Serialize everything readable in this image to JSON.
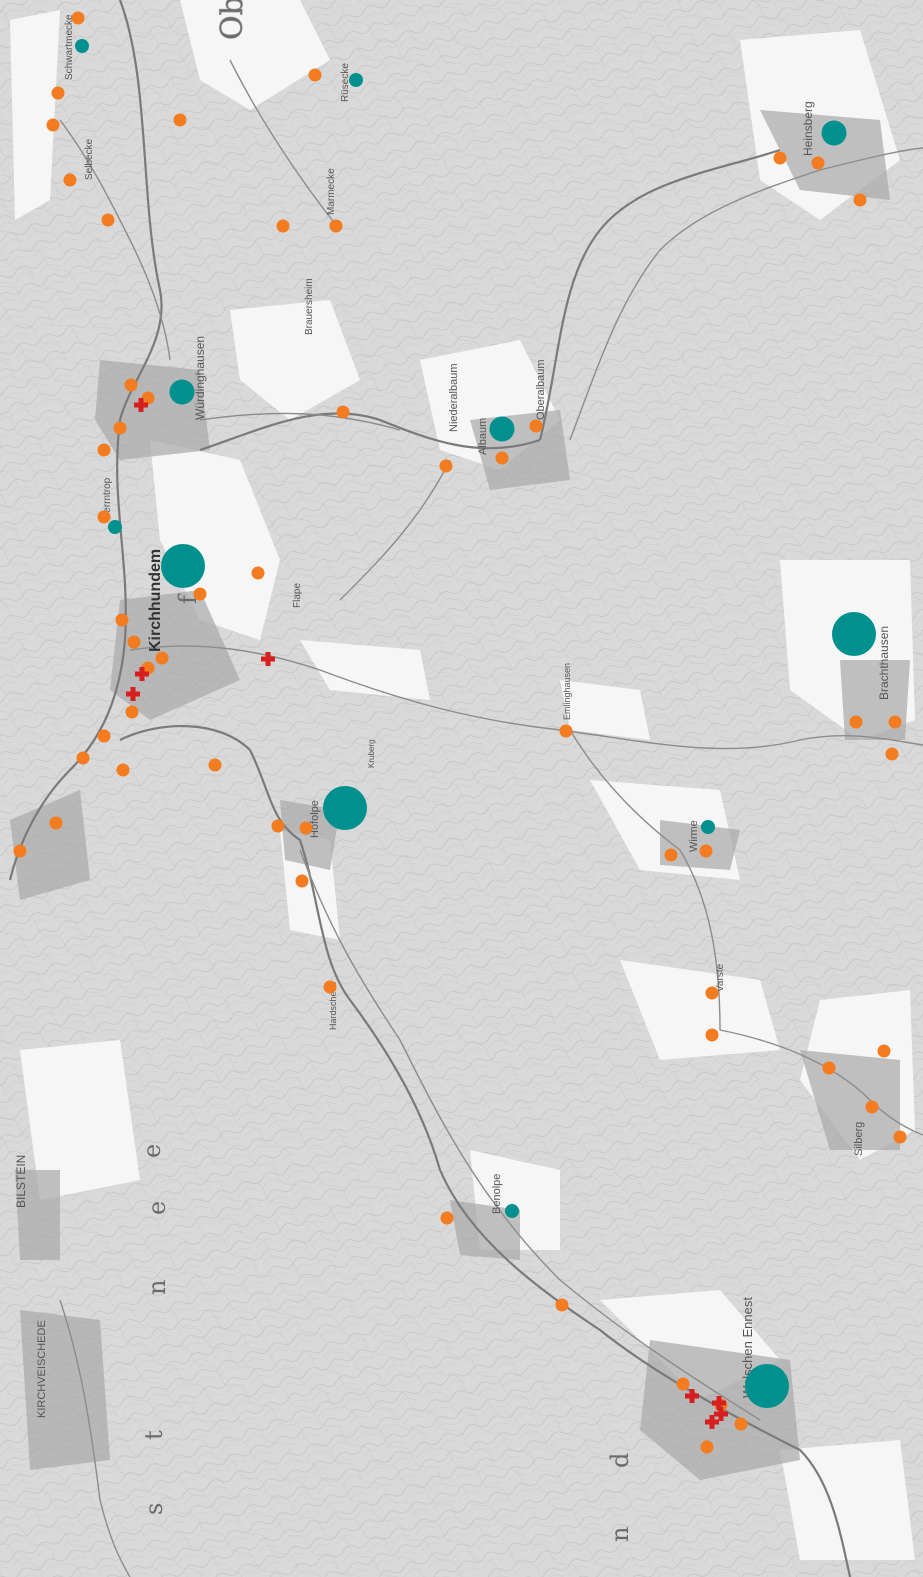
{
  "map": {
    "background_color": "#d9d9d9",
    "open_land_color": "#f6f6f6",
    "contour_color": "#bdbdbd",
    "road_color": "#8a8a8a",
    "river_color": "#6f6f6f",
    "settlement_color": "#9a9a9a",
    "orange_marker_color": "#f47c20",
    "teal_marker_color": "#00918f",
    "red_cross_color": "#d61f1f",
    "partial_text_top": "Obe"
  },
  "place_labels": [
    {
      "id": "schwartmecke",
      "text": "Schwartmecke"
    },
    {
      "id": "selbecke",
      "text": "Selbecke"
    },
    {
      "id": "rusecke",
      "text": "Rüsecke"
    },
    {
      "id": "marmecke",
      "text": "Marmecke"
    },
    {
      "id": "brauersheim",
      "text": "Brauersheim"
    },
    {
      "id": "wurdinghausen",
      "text": "Würdinghausen"
    },
    {
      "id": "niederalbaum",
      "text": "Niederalbaum"
    },
    {
      "id": "albaum",
      "text": "Albaum"
    },
    {
      "id": "oberalbaum",
      "text": "Oberalbaum"
    },
    {
      "id": "heinsberg",
      "text": "Heinsberg"
    },
    {
      "id": "herrntrop",
      "text": "Herrntrop"
    },
    {
      "id": "kirchhundem",
      "text": "Kirchhundem"
    },
    {
      "id": "flape",
      "text": "Flape"
    },
    {
      "id": "emlinghausen",
      "text": "Emlinghausen"
    },
    {
      "id": "brachthausen",
      "text": "Brachthausen"
    },
    {
      "id": "hofolpe",
      "text": "Hofolpe"
    },
    {
      "id": "wirme",
      "text": "Wirme"
    },
    {
      "id": "kruberg",
      "text": "Kruberg"
    },
    {
      "id": "hardschede",
      "text": "Hardschede"
    },
    {
      "id": "varste",
      "text": "Varste"
    },
    {
      "id": "silberg",
      "text": "Silberg"
    },
    {
      "id": "benolpe",
      "text": "Benolpe"
    },
    {
      "id": "welschen-ennest",
      "text": "Welschen Ennest"
    },
    {
      "id": "bilstein",
      "text": "BILSTEIN"
    },
    {
      "id": "kirchveischede",
      "text": "KIRCHVEISCHEDE"
    }
  ],
  "region_letters": [
    "e",
    "n",
    "e",
    "s",
    "t",
    "d",
    "n",
    "f"
  ],
  "markers": {
    "orange": 69,
    "teal_small": 6,
    "teal_medium": 5,
    "teal_large": 3,
    "red_cross": 8
  }
}
